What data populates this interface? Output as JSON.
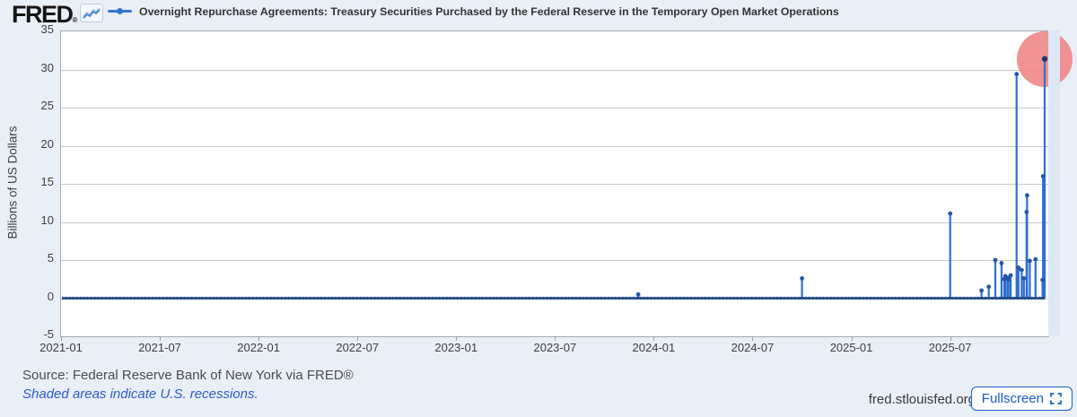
{
  "header": {
    "logo_text": "FRED",
    "logo_reg": "®",
    "legend_label": "Overnight Repurchase Agreements: Treasury Securities Purchased by the Federal Reserve in the Temporary Open Market Operations"
  },
  "footer": {
    "source": "Source: Federal Reserve Bank of New York via FRED®",
    "recession_note": "Shaded areas indicate U.S. recessions.",
    "site": "fred.stlouisfed.org",
    "fullscreen_label": "Fullscreen"
  },
  "colors": {
    "background": "#e9eff7",
    "plot_background": "#ffffff",
    "grid": "#c9c9c9",
    "plot_border": "#a6aaad",
    "line": "#2e6fd0",
    "baseline_core": "#16407e",
    "baseline_halo": "#7aa3dd",
    "marker": "#2456a8",
    "highlight_circle": "#f08080",
    "button_blue": "#1a5fca",
    "link_blue": "#2a5bcd"
  },
  "chart_data": {
    "type": "line",
    "title": "Overnight Repurchase Agreements: Treasury Securities Purchased by the Federal Reserve in the Temporary Open Market Operations",
    "xlabel": "",
    "ylabel": "Billions of US Dollars",
    "x_tick_labels": [
      "2021-01",
      "2021-07",
      "2022-01",
      "2022-07",
      "2023-01",
      "2023-07",
      "2024-01",
      "2024-07",
      "2025-01",
      "2025-07"
    ],
    "y_ticks": [
      35,
      30,
      25,
      20,
      15,
      10,
      5,
      0,
      -5
    ],
    "ylim": [
      -5,
      35
    ],
    "x_range": [
      "2021-01-01",
      "2025-12-31"
    ],
    "grid": "horizontal",
    "legend_position": "top",
    "frequency": "daily",
    "baseline_value": 0.0,
    "series_note": "Daily values are ~0 for most of 2021-2025 except the spikes listed",
    "spikes": [
      {
        "date": "2023-12-01",
        "value": 0.5
      },
      {
        "date": "2024-09-30",
        "value": 2.6
      },
      {
        "date": "2025-06-30",
        "value": 11.1
      },
      {
        "date": "2025-08-27",
        "value": 1.0
      },
      {
        "date": "2025-09-10",
        "value": 1.5
      },
      {
        "date": "2025-09-22",
        "value": 5.0
      },
      {
        "date": "2025-10-03",
        "value": 4.6
      },
      {
        "date": "2025-10-08",
        "value": 2.5
      },
      {
        "date": "2025-10-10",
        "value": 2.9
      },
      {
        "date": "2025-10-14",
        "value": 2.7
      },
      {
        "date": "2025-10-16",
        "value": 2.4
      },
      {
        "date": "2025-10-20",
        "value": 3.0
      },
      {
        "date": "2025-10-31",
        "value": 29.4
      },
      {
        "date": "2025-11-04",
        "value": 4.0
      },
      {
        "date": "2025-11-10",
        "value": 3.7
      },
      {
        "date": "2025-11-14",
        "value": 2.6
      },
      {
        "date": "2025-11-19",
        "value": 11.3
      },
      {
        "date": "2025-11-20",
        "value": 13.5
      },
      {
        "date": "2025-11-25",
        "value": 4.9
      },
      {
        "date": "2025-12-05",
        "value": 5.1
      },
      {
        "date": "2025-12-18",
        "value": 2.4
      },
      {
        "date": "2025-12-19",
        "value": 16.0
      },
      {
        "date": "2025-12-22",
        "value": 31.4
      }
    ],
    "last_point": {
      "date": "2025-12-22",
      "value": 31.4,
      "highlighted": true
    }
  }
}
